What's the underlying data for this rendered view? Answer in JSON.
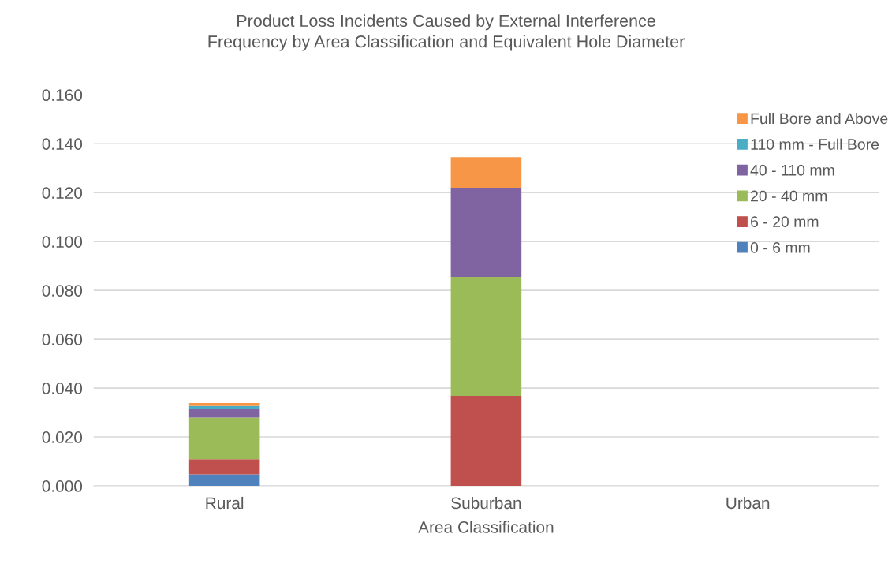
{
  "chart_data": {
    "type": "bar",
    "title": "Product Loss Incidents Caused by External Interference\nFrequency by Area Classification and Equivalent Hole Diameter",
    "xlabel": "Area Classification",
    "categories": [
      "Rural",
      "Suburban",
      "Urban"
    ],
    "stacked": true,
    "series": [
      {
        "name": "0 - 6 mm",
        "color": "#4f81bd",
        "values": [
          0.0047,
          0,
          0
        ]
      },
      {
        "name": "6 - 20 mm",
        "color": "#c0504d",
        "values": [
          0.0062,
          0.0368,
          0
        ]
      },
      {
        "name": "20 - 40 mm",
        "color": "#9bbb59",
        "values": [
          0.017,
          0.0487,
          0
        ]
      },
      {
        "name": "40 - 110 mm",
        "color": "#8064a2",
        "values": [
          0.0035,
          0.0365,
          0
        ]
      },
      {
        "name": "110 mm - Full Bore",
        "color": "#4bacc6",
        "values": [
          0.0013,
          0,
          0
        ]
      },
      {
        "name": "Full Bore and Above",
        "color": "#f79646",
        "values": [
          0.0012,
          0.0125,
          0
        ]
      }
    ],
    "ylim": [
      0,
      0.16
    ],
    "yticks": [
      {
        "value": 0,
        "label": "0.000"
      },
      {
        "value": 0.02,
        "label": "0.020"
      },
      {
        "value": 0.04,
        "label": "0.040"
      },
      {
        "value": 0.06,
        "label": "0.060"
      },
      {
        "value": 0.08,
        "label": "0.080"
      },
      {
        "value": 0.1,
        "label": "0.100"
      },
      {
        "value": 0.12,
        "label": "0.120"
      },
      {
        "value": 0.14,
        "label": "0.140"
      },
      {
        "value": 0.16,
        "label": "0.160"
      }
    ],
    "grid": "y",
    "legend": "top right"
  }
}
